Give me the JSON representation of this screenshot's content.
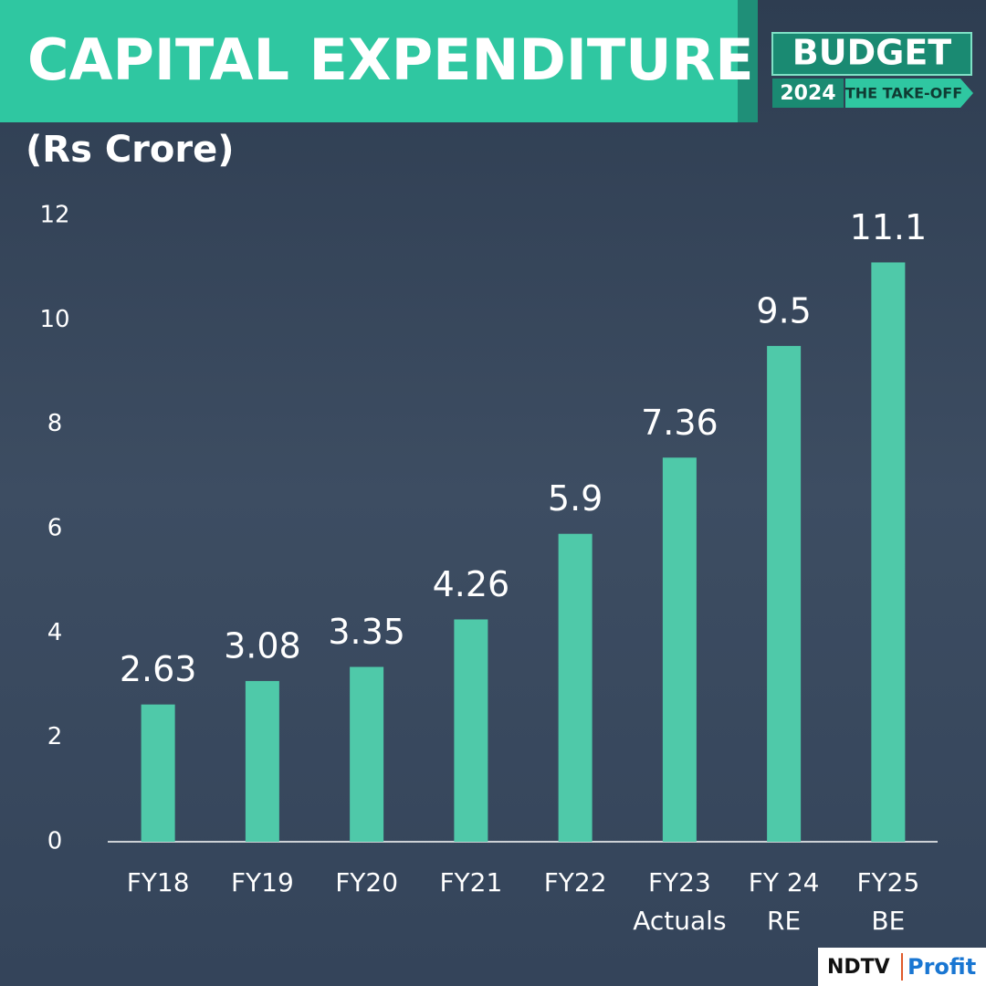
{
  "chart_data": {
    "type": "bar",
    "title": "CAPITAL EXPENDITURE",
    "subtitle": "(Rs Crore)",
    "badge": {
      "title": "BUDGET",
      "year": "2024",
      "tagline": "THE TAKE-OFF"
    },
    "logo": {
      "brand": "NDTV",
      "product": "Profit"
    },
    "categories": [
      [
        "FY18"
      ],
      [
        "FY19"
      ],
      [
        "FY20"
      ],
      [
        "FY21"
      ],
      [
        "FY22"
      ],
      [
        "FY23",
        "Actuals"
      ],
      [
        "FY 24",
        "RE"
      ],
      [
        "FY25",
        "BE"
      ]
    ],
    "values": [
      2.63,
      3.08,
      3.35,
      4.26,
      5.9,
      7.36,
      9.5,
      11.1
    ],
    "color": "#4fc9a9",
    "ylim": [
      0,
      12
    ],
    "yticks": [
      0,
      2,
      4,
      6,
      8,
      10,
      12
    ],
    "grid": false
  }
}
